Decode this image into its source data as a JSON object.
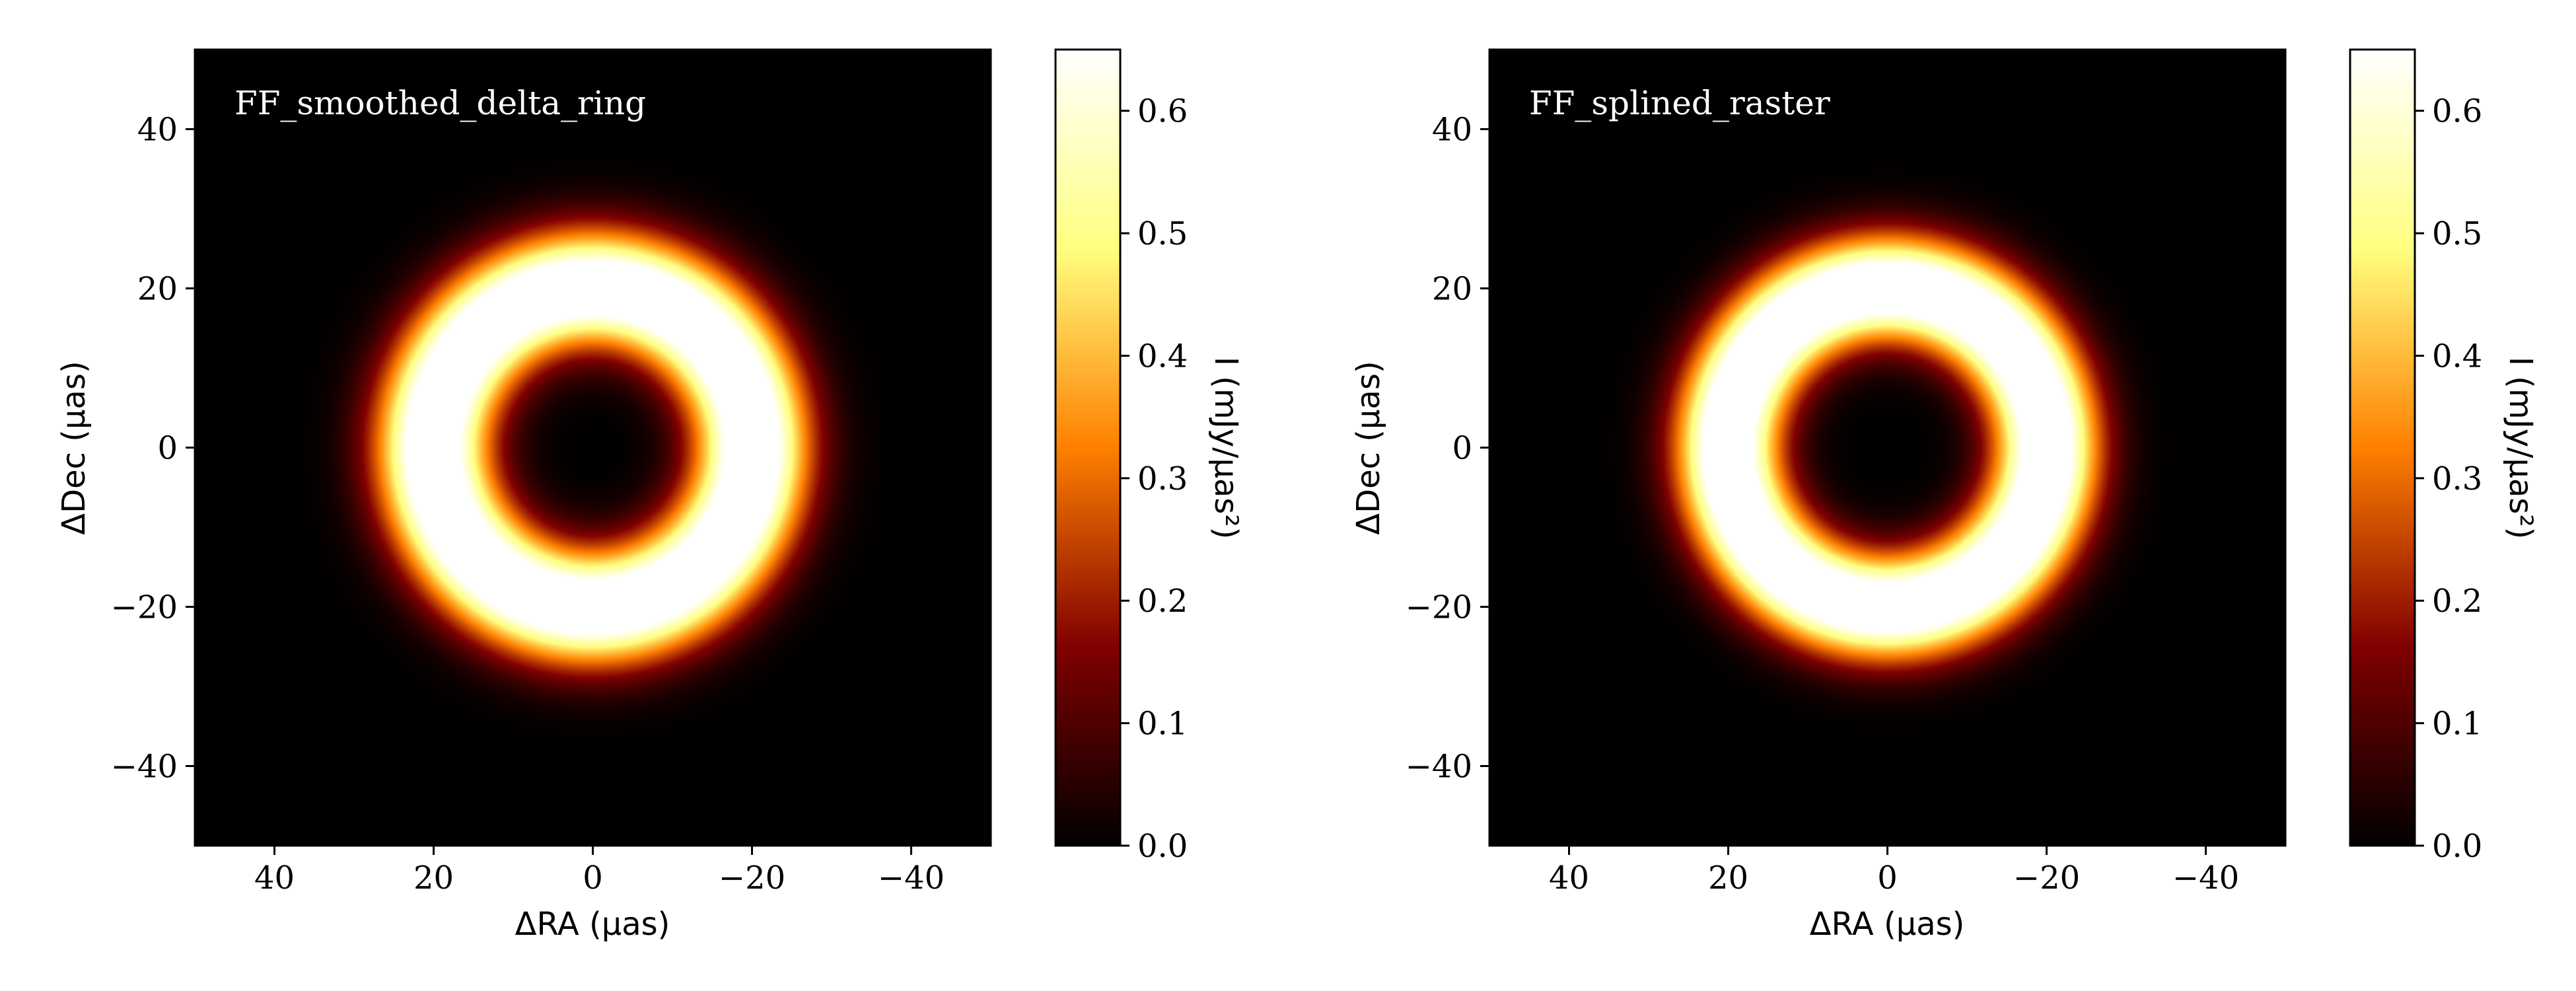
{
  "chart_data": [
    {
      "type": "heatmap",
      "title": "FF_smoothed_delta_ring",
      "xlabel": "ΔRA (μas)",
      "ylabel": "ΔDec (μas)",
      "xlim": [
        50,
        -50
      ],
      "ylim": [
        -50,
        50
      ],
      "xticks": [
        40,
        20,
        0,
        -20,
        -40
      ],
      "xtick_labels": [
        "40",
        "20",
        "0",
        "−20",
        "−40"
      ],
      "yticks": [
        40,
        20,
        0,
        -20,
        -40
      ],
      "ytick_labels": [
        "40",
        "20",
        "0",
        "−20",
        "−40"
      ],
      "grid": false,
      "colormap": "afmhot",
      "image": {
        "shape": "ring",
        "center": [
          0,
          0
        ],
        "radius_uas": 20,
        "width_sigma_uas": 5.0,
        "peak_mJy_per_uas2": 0.65
      },
      "colorbar": {
        "label": "I (mJy/μas²)",
        "range": [
          0,
          0.65
        ],
        "ticks": [
          0.0,
          0.1,
          0.2,
          0.3,
          0.4,
          0.5,
          0.6
        ],
        "tick_labels": [
          "0.0",
          "0.1",
          "0.2",
          "0.3",
          "0.4",
          "0.5",
          "0.6"
        ]
      }
    },
    {
      "type": "heatmap",
      "title": "FF_splined_raster",
      "xlabel": "ΔRA (μas)",
      "ylabel": "ΔDec (μas)",
      "xlim": [
        50,
        -50
      ],
      "ylim": [
        -50,
        50
      ],
      "xticks": [
        40,
        20,
        0,
        -20,
        -40
      ],
      "xtick_labels": [
        "40",
        "20",
        "0",
        "−20",
        "−40"
      ],
      "yticks": [
        40,
        20,
        0,
        -20,
        -40
      ],
      "ytick_labels": [
        "40",
        "20",
        "0",
        "−20",
        "−40"
      ],
      "grid": false,
      "colormap": "afmhot",
      "image": {
        "shape": "ring",
        "center": [
          0,
          0
        ],
        "radius_uas": 20,
        "width_sigma_uas": 4.6,
        "peak_mJy_per_uas2": 0.65
      },
      "colorbar": {
        "label": "I (mJy/μas²)",
        "range": [
          0,
          0.65
        ],
        "ticks": [
          0.0,
          0.1,
          0.2,
          0.3,
          0.4,
          0.5,
          0.6
        ],
        "tick_labels": [
          "0.0",
          "0.1",
          "0.2",
          "0.3",
          "0.4",
          "0.5",
          "0.6"
        ]
      }
    }
  ]
}
